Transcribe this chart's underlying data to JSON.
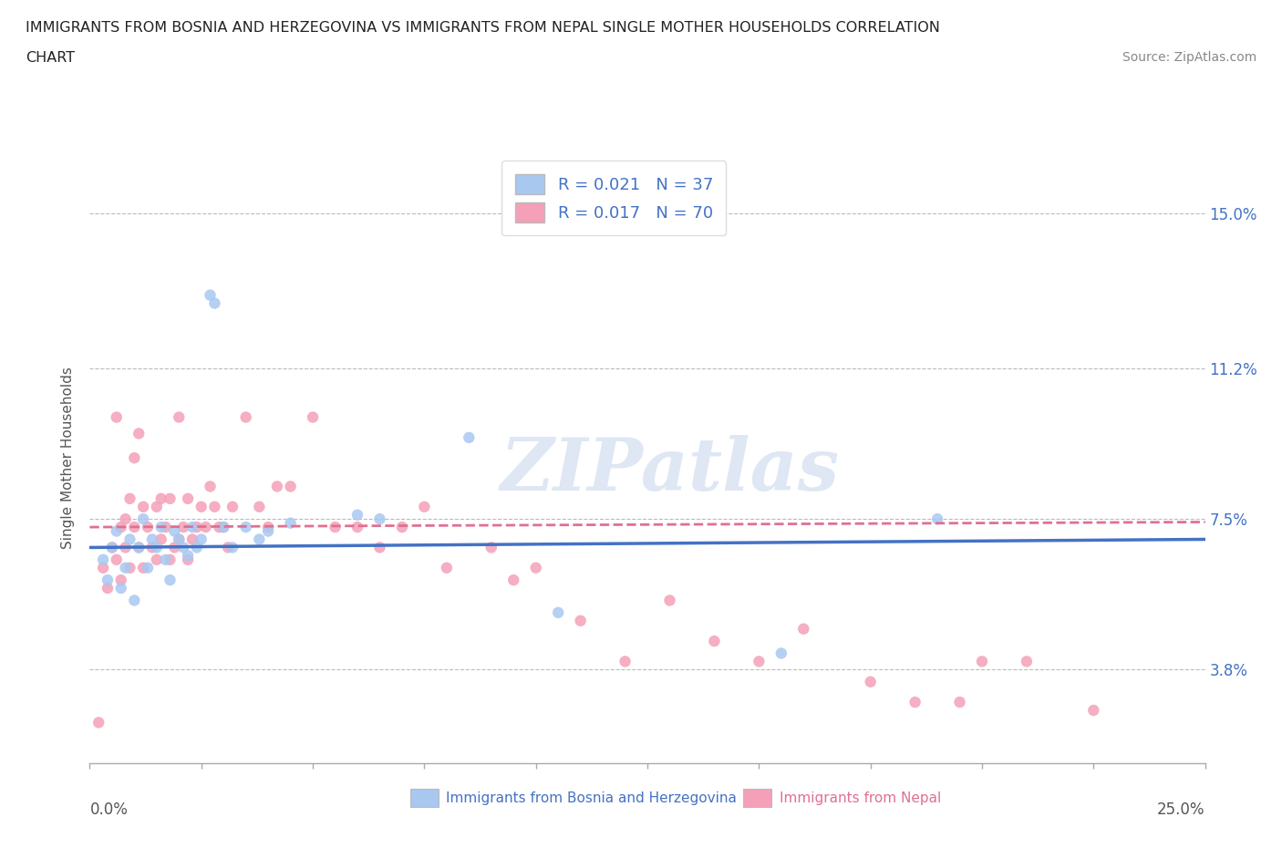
{
  "title_line1": "IMMIGRANTS FROM BOSNIA AND HERZEGOVINA VS IMMIGRANTS FROM NEPAL SINGLE MOTHER HOUSEHOLDS CORRELATION",
  "title_line2": "CHART",
  "source_text": "Source: ZipAtlas.com",
  "ylabel": "Single Mother Households",
  "y_tick_labels": [
    "3.8%",
    "7.5%",
    "11.2%",
    "15.0%"
  ],
  "y_tick_values": [
    0.038,
    0.075,
    0.112,
    0.15
  ],
  "xlim": [
    0.0,
    0.25
  ],
  "ylim": [
    0.015,
    0.165
  ],
  "color_bosnia": "#A8C8F0",
  "color_nepal": "#F4A0B8",
  "trendline_color_bosnia": "#4472C4",
  "trendline_color_nepal": "#E07090",
  "watermark_text": "ZIPatlas",
  "watermark_color": "#C8D8EC",
  "legend_label1": "R = 0.021   N = 37",
  "legend_label2": "R = 0.017   N = 70",
  "bottom_label1": "Immigrants from Bosnia and Herzegovina",
  "bottom_label2": "Immigrants from Nepal",
  "bottom_color1": "#4472C4",
  "bottom_color2": "#E07090",
  "bosnia_x": [
    0.003,
    0.004,
    0.005,
    0.006,
    0.007,
    0.008,
    0.009,
    0.01,
    0.011,
    0.012,
    0.013,
    0.014,
    0.015,
    0.016,
    0.017,
    0.018,
    0.019,
    0.02,
    0.021,
    0.022,
    0.023,
    0.024,
    0.025,
    0.027,
    0.028,
    0.03,
    0.032,
    0.035,
    0.038,
    0.04,
    0.045,
    0.06,
    0.065,
    0.085,
    0.105,
    0.155,
    0.19
  ],
  "bosnia_y": [
    0.065,
    0.06,
    0.068,
    0.072,
    0.058,
    0.063,
    0.07,
    0.055,
    0.068,
    0.075,
    0.063,
    0.07,
    0.068,
    0.073,
    0.065,
    0.06,
    0.072,
    0.07,
    0.068,
    0.066,
    0.073,
    0.068,
    0.07,
    0.13,
    0.128,
    0.073,
    0.068,
    0.073,
    0.07,
    0.072,
    0.074,
    0.076,
    0.075,
    0.095,
    0.052,
    0.042,
    0.075
  ],
  "nepal_x": [
    0.002,
    0.003,
    0.004,
    0.005,
    0.006,
    0.006,
    0.007,
    0.007,
    0.008,
    0.008,
    0.009,
    0.009,
    0.01,
    0.01,
    0.011,
    0.011,
    0.012,
    0.012,
    0.013,
    0.014,
    0.015,
    0.015,
    0.016,
    0.016,
    0.017,
    0.018,
    0.018,
    0.019,
    0.02,
    0.02,
    0.021,
    0.022,
    0.022,
    0.023,
    0.024,
    0.025,
    0.026,
    0.027,
    0.028,
    0.029,
    0.03,
    0.031,
    0.032,
    0.035,
    0.038,
    0.04,
    0.042,
    0.045,
    0.05,
    0.055,
    0.06,
    0.065,
    0.07,
    0.075,
    0.08,
    0.09,
    0.095,
    0.1,
    0.11,
    0.12,
    0.13,
    0.14,
    0.15,
    0.16,
    0.175,
    0.185,
    0.195,
    0.2,
    0.21,
    0.225
  ],
  "nepal_y": [
    0.025,
    0.063,
    0.058,
    0.068,
    0.065,
    0.1,
    0.06,
    0.073,
    0.068,
    0.075,
    0.063,
    0.08,
    0.073,
    0.09,
    0.068,
    0.096,
    0.078,
    0.063,
    0.073,
    0.068,
    0.065,
    0.078,
    0.08,
    0.07,
    0.073,
    0.065,
    0.08,
    0.068,
    0.07,
    0.1,
    0.073,
    0.065,
    0.08,
    0.07,
    0.073,
    0.078,
    0.073,
    0.083,
    0.078,
    0.073,
    0.073,
    0.068,
    0.078,
    0.1,
    0.078,
    0.073,
    0.083,
    0.083,
    0.1,
    0.073,
    0.073,
    0.068,
    0.073,
    0.078,
    0.063,
    0.068,
    0.06,
    0.063,
    0.05,
    0.04,
    0.055,
    0.045,
    0.04,
    0.048,
    0.035,
    0.03,
    0.03,
    0.04,
    0.04,
    0.028
  ]
}
